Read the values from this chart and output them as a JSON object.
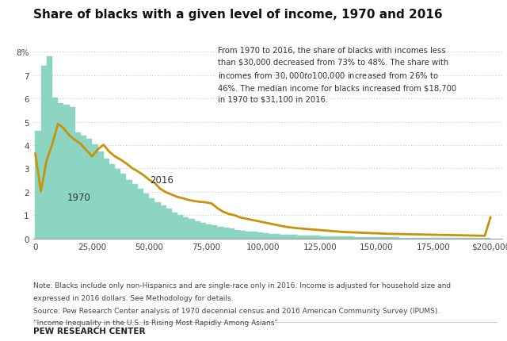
{
  "title": "Share of blacks with a given level of income, 1970 and 2016",
  "note_line1": "Note: Blacks include only non-Hispanics and are single-race only in 2016. Income is adjusted for household size and",
  "note_line2": "expressed in 2016 dollars. See Methodology for details.",
  "source_line1": "Source: Pew Research Center analysis of 1970 decennial census and 2016 American Community Survey (IPUMS).",
  "source_line2": "“Income Inequality in the U.S. Is Rising Most Rapidly Among Asians”",
  "branding": "PEW RESEARCH CENTER",
  "annotation": "From 1970 to 2016, the share of blacks with incomes less\nthan $30,000 decreased from 73% to 48%. The share with\nincomes from $30,000 to $100,000 increased from 26% to\n46%. The median income for blacks increased from $18,700\nin 1970 to $31,100 in 2016.",
  "label_1970": "1970",
  "label_2016": "2016",
  "bar_color": "#8dd5c3",
  "line_color": "#c8920a",
  "background_color": "#ffffff",
  "ylim": [
    0,
    8.5
  ],
  "yticks": [
    0,
    1,
    2,
    3,
    4,
    5,
    6,
    7,
    8
  ],
  "xlim": [
    -1000,
    205000
  ],
  "xtick_positions": [
    0,
    25000,
    50000,
    75000,
    100000,
    125000,
    150000,
    175000,
    200000
  ],
  "xtick_labels": [
    "0",
    "25,000",
    "50,000",
    "75,000",
    "100,000",
    "125,000",
    "150,000",
    "175,000",
    "$200,000"
  ],
  "bar_x": [
    0,
    2500,
    5000,
    7500,
    10000,
    12500,
    15000,
    17500,
    20000,
    22500,
    25000,
    27500,
    30000,
    32500,
    35000,
    37500,
    40000,
    42500,
    45000,
    47500,
    50000,
    52500,
    55000,
    57500,
    60000,
    62500,
    65000,
    67500,
    70000,
    72500,
    75000,
    77500,
    80000,
    82500,
    85000,
    87500,
    90000,
    92500,
    95000,
    97500,
    100000,
    102500,
    105000,
    107500,
    110000,
    112500,
    115000,
    117500,
    120000,
    122500,
    125000,
    127500,
    130000,
    132500,
    135000,
    137500,
    140000,
    142500,
    145000,
    147500,
    150000,
    152500,
    155000,
    157500,
    160000,
    162500,
    165000,
    167500,
    170000,
    172500,
    175000,
    177500,
    180000,
    182500,
    185000,
    187500,
    190000,
    192500,
    195000,
    197500
  ],
  "bar_heights": [
    4.6,
    7.4,
    7.8,
    6.05,
    5.82,
    5.72,
    5.62,
    4.55,
    4.42,
    4.28,
    4.02,
    3.72,
    3.42,
    3.18,
    2.98,
    2.78,
    2.52,
    2.32,
    2.12,
    1.92,
    1.72,
    1.57,
    1.42,
    1.27,
    1.12,
    1.02,
    0.92,
    0.83,
    0.75,
    0.68,
    0.61,
    0.56,
    0.51,
    0.46,
    0.42,
    0.38,
    0.34,
    0.31,
    0.28,
    0.25,
    0.22,
    0.2,
    0.18,
    0.17,
    0.16,
    0.15,
    0.14,
    0.13,
    0.12,
    0.11,
    0.1,
    0.095,
    0.09,
    0.085,
    0.08,
    0.075,
    0.07,
    0.065,
    0.06,
    0.055,
    0.05,
    0.048,
    0.045,
    0.042,
    0.04,
    0.038,
    0.035,
    0.033,
    0.031,
    0.029,
    0.027,
    0.025,
    0.023,
    0.022,
    0.02,
    0.019,
    0.018,
    0.017,
    0.016,
    0.015
  ],
  "line_x": [
    0,
    2500,
    5000,
    7500,
    10000,
    12500,
    15000,
    17500,
    20000,
    22500,
    25000,
    27500,
    30000,
    32500,
    35000,
    37500,
    40000,
    42500,
    45000,
    47500,
    50000,
    52500,
    55000,
    57500,
    60000,
    62500,
    65000,
    67500,
    70000,
    72500,
    75000,
    77500,
    80000,
    82500,
    85000,
    87500,
    90000,
    92500,
    95000,
    97500,
    100000,
    102500,
    105000,
    107500,
    110000,
    112500,
    115000,
    117500,
    120000,
    122500,
    125000,
    127500,
    130000,
    132500,
    135000,
    137500,
    140000,
    142500,
    145000,
    147500,
    150000,
    152500,
    155000,
    157500,
    160000,
    162500,
    165000,
    167500,
    170000,
    172500,
    175000,
    177500,
    180000,
    182500,
    185000,
    187500,
    190000,
    192500,
    195000,
    197500,
    200000
  ],
  "line_y": [
    3.65,
    2.02,
    3.35,
    4.05,
    4.92,
    4.72,
    4.42,
    4.22,
    4.05,
    3.78,
    3.52,
    3.82,
    4.02,
    3.72,
    3.52,
    3.38,
    3.22,
    3.02,
    2.88,
    2.72,
    2.52,
    2.38,
    2.12,
    1.98,
    1.88,
    1.78,
    1.72,
    1.65,
    1.6,
    1.57,
    1.55,
    1.5,
    1.3,
    1.15,
    1.05,
    1.0,
    0.9,
    0.85,
    0.8,
    0.75,
    0.7,
    0.65,
    0.6,
    0.55,
    0.5,
    0.47,
    0.44,
    0.42,
    0.4,
    0.38,
    0.36,
    0.34,
    0.32,
    0.3,
    0.28,
    0.27,
    0.26,
    0.25,
    0.24,
    0.23,
    0.22,
    0.21,
    0.2,
    0.195,
    0.19,
    0.185,
    0.18,
    0.175,
    0.17,
    0.165,
    0.16,
    0.155,
    0.15,
    0.145,
    0.14,
    0.135,
    0.13,
    0.125,
    0.12,
    0.115,
    0.92
  ]
}
